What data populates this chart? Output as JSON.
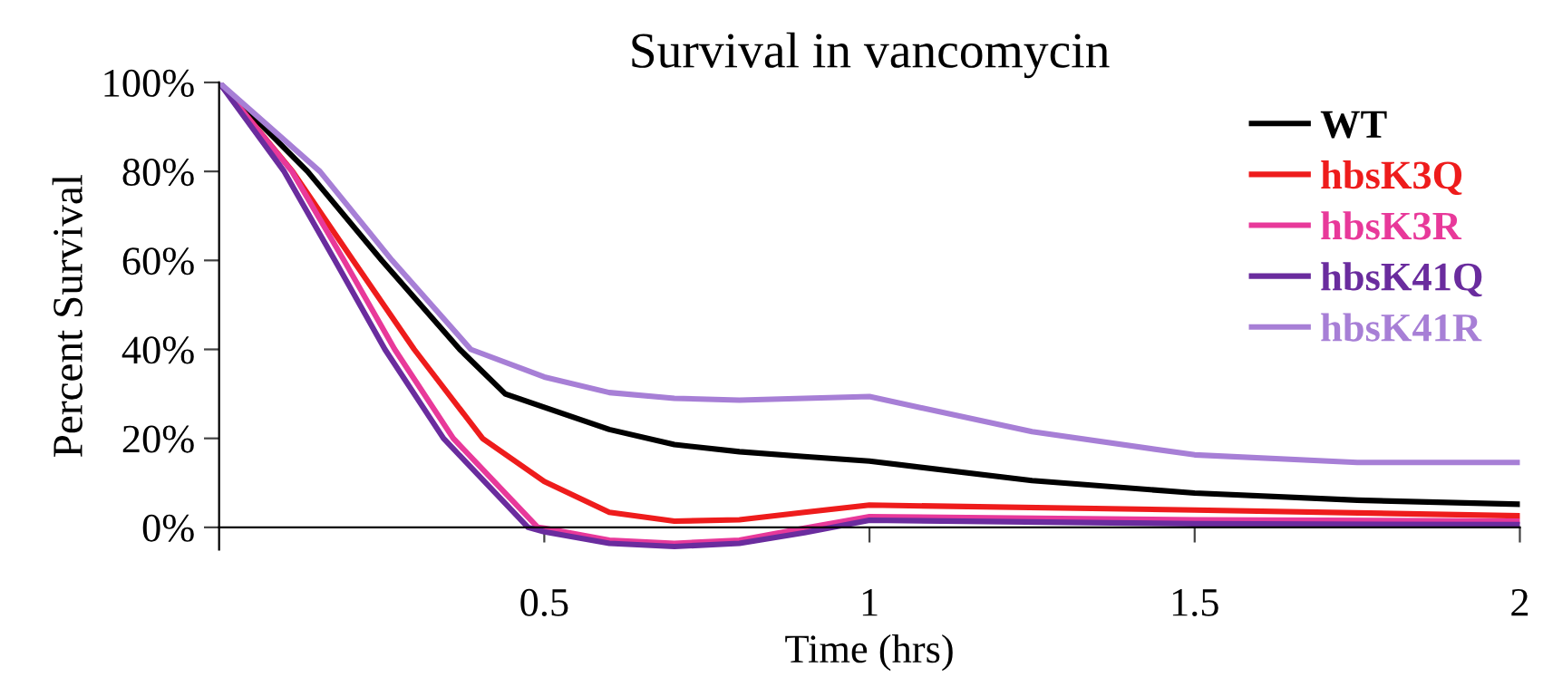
{
  "chart_data": {
    "type": "line",
    "title": "Survival in vancomycin",
    "xlabel": "Time (hrs)",
    "ylabel": "Percent Survival",
    "xlim": [
      0,
      2
    ],
    "xticks": [
      0.5,
      1,
      1.5,
      2
    ],
    "ylim": [
      -5,
      100
    ],
    "yticks": [
      {
        "value": 0,
        "label": "0%"
      },
      {
        "value": 20,
        "label": "20%"
      },
      {
        "value": 40,
        "label": "40%"
      },
      {
        "value": 60,
        "label": "60%"
      },
      {
        "value": 80,
        "label": "80%"
      },
      {
        "value": 100,
        "label": "100%"
      }
    ],
    "grid": false,
    "legend": "top right",
    "marker": "none",
    "line_style": "solid",
    "series": [
      {
        "name": "WT",
        "color": "#000000",
        "x": [
          0,
          0.136,
          0.25,
          0.37,
          0.44,
          0.5,
          0.6,
          0.7,
          0.8,
          0.9,
          1.0,
          1.25,
          1.5,
          1.75,
          2
        ],
        "values": [
          100,
          80,
          60,
          40,
          30,
          27,
          22,
          18.6,
          17,
          15.9,
          14.9,
          10.5,
          7.7,
          6.1,
          5.2
        ]
      },
      {
        "name": "hbsK3Q",
        "color": "#ee1c1c",
        "x": [
          0,
          0.113,
          0.206,
          0.3,
          0.405,
          0.5,
          0.6,
          0.7,
          0.8,
          0.9,
          1.0,
          1.5,
          2
        ],
        "values": [
          100,
          80,
          60,
          40,
          20,
          10.3,
          3.4,
          1.4,
          1.7,
          3.4,
          5,
          3.9,
          2.6
        ]
      },
      {
        "name": "hbsK3R",
        "color": "#e8399a",
        "x": [
          0,
          0.112,
          0.192,
          0.27,
          0.36,
          0.49,
          0.5,
          0.6,
          0.7,
          0.8,
          0.9,
          1.0,
          1.5,
          2
        ],
        "values": [
          100,
          80,
          60,
          40,
          20,
          0,
          -0.2,
          -2.9,
          -3.6,
          -2.9,
          -0.2,
          2.4,
          1.7,
          1.4
        ]
      },
      {
        "name": "hbsK41Q",
        "color": "#6a2c9e",
        "x": [
          0,
          0.1,
          0.178,
          0.255,
          0.345,
          0.475,
          0.5,
          0.6,
          0.7,
          0.8,
          0.9,
          1.0,
          1.5,
          2
        ],
        "values": [
          100,
          80,
          60,
          40,
          20,
          0,
          -1.0,
          -3.6,
          -4.3,
          -3.6,
          -1.2,
          1.6,
          0.8,
          0.6
        ]
      },
      {
        "name": "hbsK41R",
        "color": "#a77fd6",
        "x": [
          0,
          0.155,
          0.266,
          0.387,
          0.5,
          0.6,
          0.7,
          0.8,
          0.9,
          1.0,
          1.25,
          1.5,
          1.75,
          2
        ],
        "values": [
          100,
          80,
          60,
          40,
          33.8,
          30.3,
          29,
          28.6,
          29,
          29.4,
          21.5,
          16.3,
          14.6,
          14.6
        ]
      }
    ]
  }
}
